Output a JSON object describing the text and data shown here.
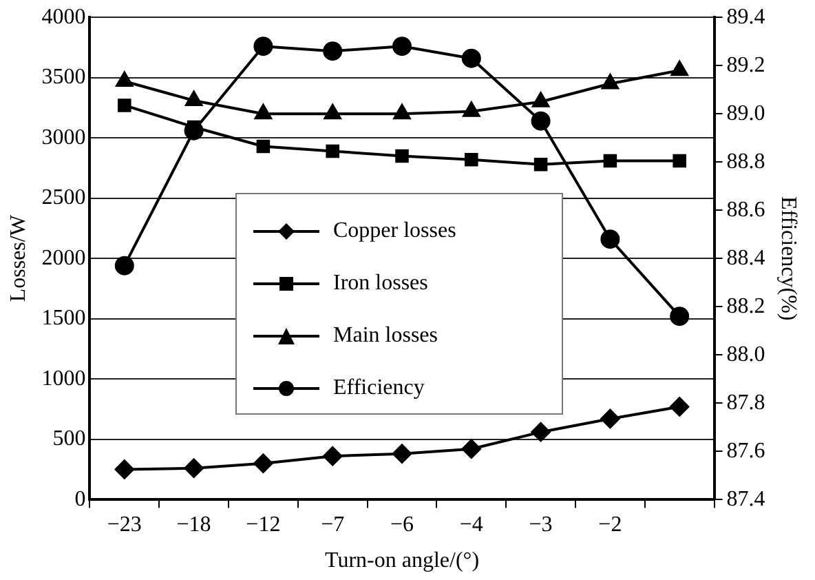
{
  "chart_data": {
    "type": "line",
    "xlabel": "Turn-on angle/(°)",
    "ylabel": "Losses/W",
    "y2label": "Efficiency(%)",
    "categories": [
      "−23",
      "−18",
      "−12",
      "−7",
      "−6",
      "−4",
      "−3",
      "−2",
      null
    ],
    "ylim": [
      0,
      4000
    ],
    "yticks": [
      0,
      500,
      1000,
      1500,
      2000,
      2500,
      3000,
      3500,
      4000
    ],
    "y2lim": [
      87.4,
      89.4
    ],
    "y2ticks": [
      {
        "value": 87.4,
        "label": "87.4"
      },
      {
        "value": 87.6,
        "label": "87.6"
      },
      {
        "value": 87.8,
        "label": "87.8"
      },
      {
        "value": 88.0,
        "label": "88.0"
      },
      {
        "value": 88.2,
        "label": "88.2"
      },
      {
        "value": 88.4,
        "label": "88.4"
      },
      {
        "value": 88.6,
        "label": "88.6"
      },
      {
        "value": 88.8,
        "label": "88.8"
      },
      {
        "value": 89.0,
        "label": "89.0"
      },
      {
        "value": 89.2,
        "label": "89.2"
      },
      {
        "value": 89.4,
        "label": "89.4"
      }
    ],
    "grid": "y",
    "legend": "center",
    "line_style": "solid",
    "series": [
      {
        "name": "Copper losses",
        "color": "#000000",
        "marker": "diamond",
        "values": [
          250,
          260,
          300,
          360,
          380,
          420,
          560,
          670,
          770
        ]
      },
      {
        "name": "Iron losses",
        "color": "#000000",
        "marker": "square",
        "values": [
          3270,
          3090,
          2930,
          2890,
          2850,
          2820,
          2780,
          2810,
          2810
        ]
      },
      {
        "name": "Main losses",
        "color": "#000000",
        "marker": "triangle",
        "values": [
          3470,
          3310,
          3200,
          3200,
          3200,
          3220,
          3300,
          3450,
          3560
        ]
      },
      {
        "name": "Efficiency",
        "color": "#000000",
        "marker": "circle",
        "axis": "y2",
        "values": [
          88.37,
          88.93,
          89.28,
          89.26,
          89.28,
          89.23,
          88.97,
          88.48,
          88.16
        ]
      }
    ]
  }
}
